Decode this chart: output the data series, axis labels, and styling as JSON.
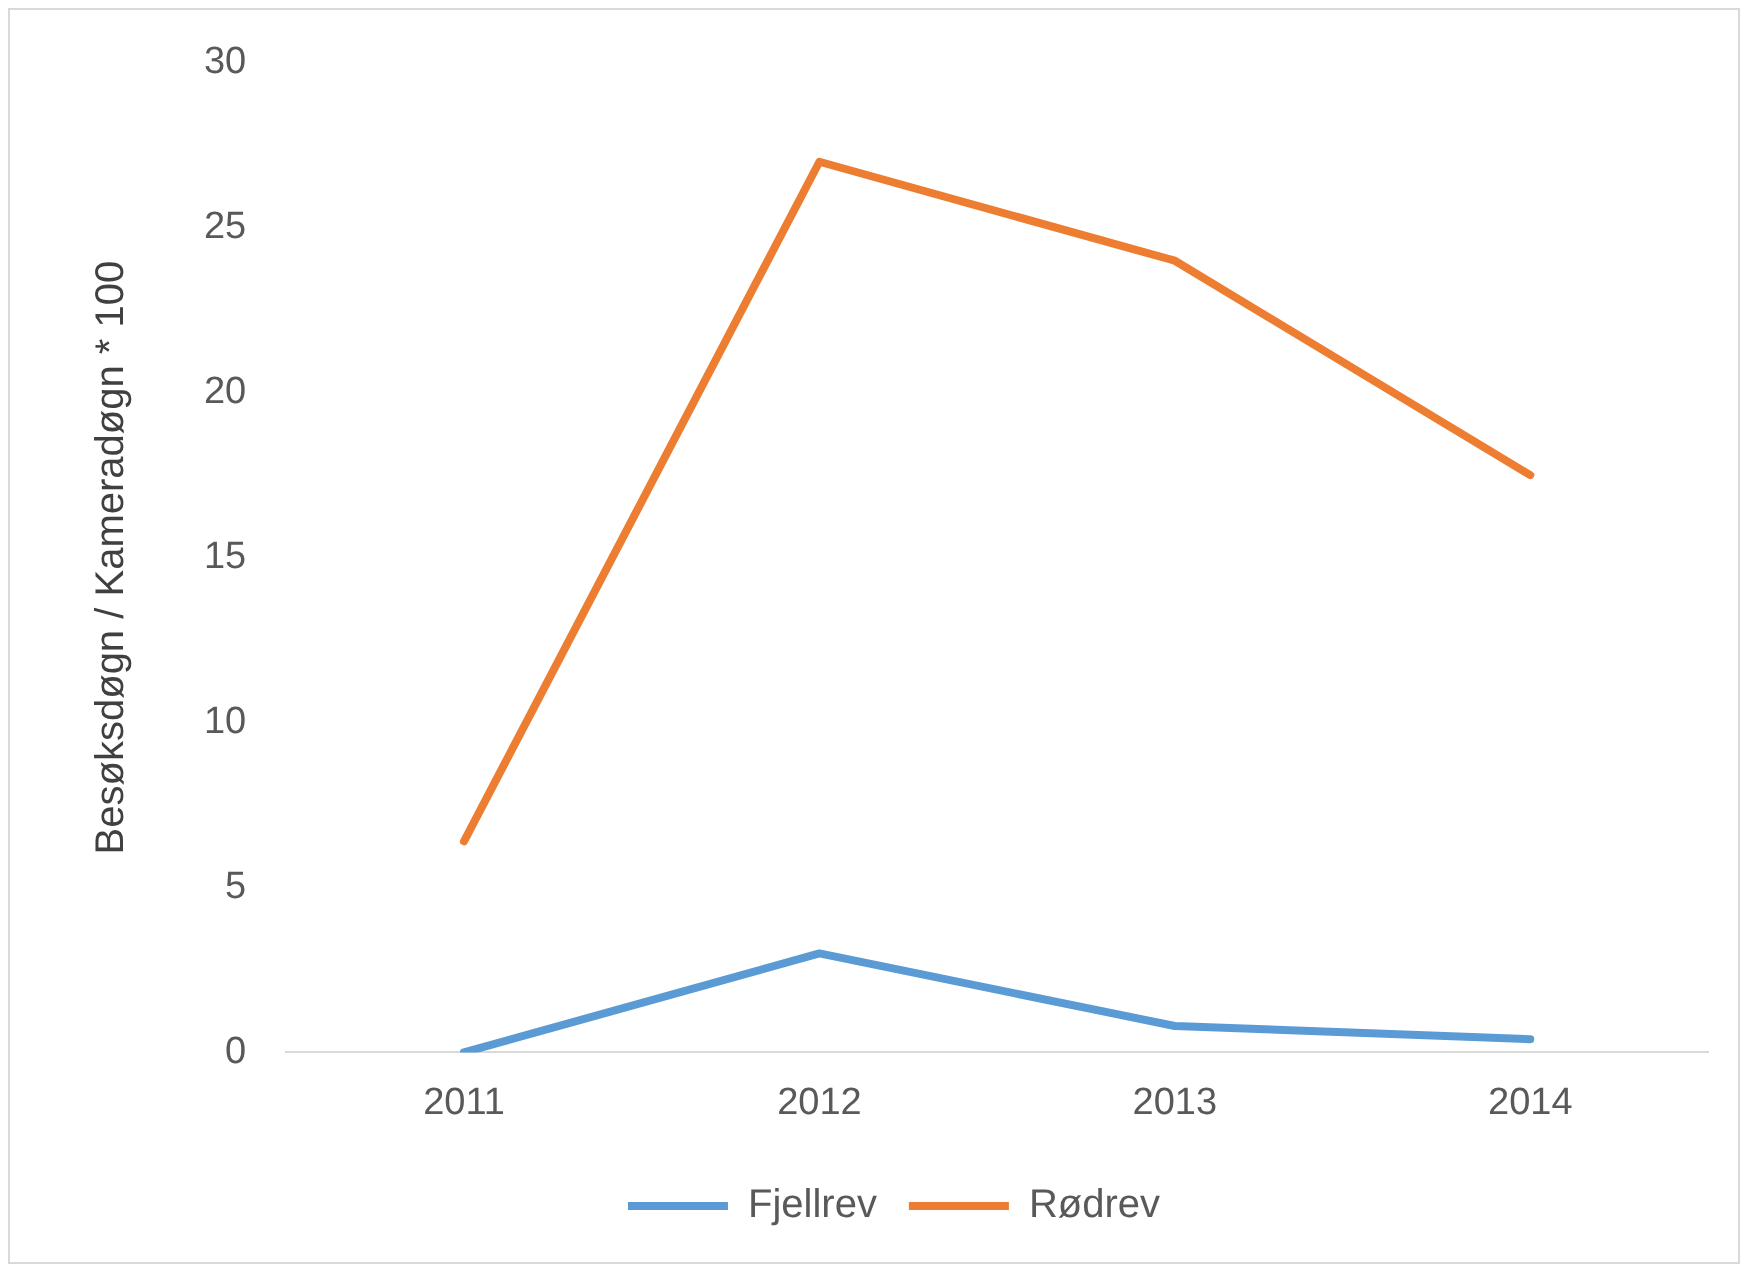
{
  "chart_data": {
    "type": "line",
    "ylabel": "Besøksdøgn / Kameradøgn * 100",
    "categories": [
      "2011",
      "2012",
      "2013",
      "2014"
    ],
    "series": [
      {
        "name": "Fjellrev",
        "color": "#5b9bd5",
        "values": [
          0,
          3,
          0.8,
          0.4
        ]
      },
      {
        "name": "Rødrev",
        "color": "#ed7d31",
        "values": [
          6.4,
          27,
          24,
          17.5
        ]
      }
    ],
    "ylim": [
      0,
      30
    ],
    "yticks": [
      0,
      5,
      10,
      15,
      20,
      25,
      30
    ],
    "grid": false,
    "legend": "bottom",
    "marker": "none",
    "line_style": "solid"
  }
}
